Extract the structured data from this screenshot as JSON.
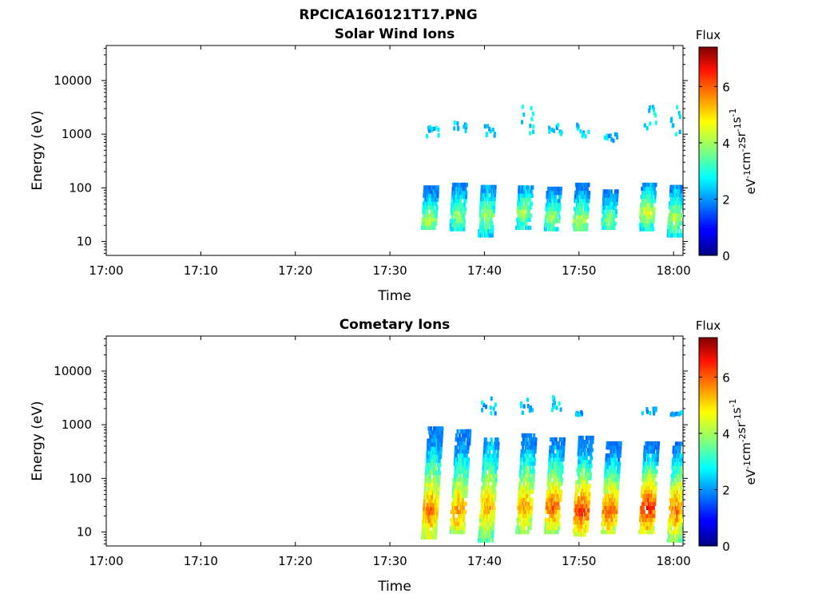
{
  "figure_title": "RPCICA160121T17.PNG",
  "colorbar": {
    "label": "Flux",
    "unit_parts": [
      "eV",
      "-1",
      "cm",
      "-2",
      "sr",
      "-1",
      "s",
      "-1"
    ],
    "ticks": [
      0,
      2,
      4,
      6
    ],
    "range": [
      0,
      7.4
    ],
    "colormap": "jet"
  },
  "chart_data": [
    {
      "type": "heatmap",
      "title": "Solar Wind Ions",
      "xlabel": "Time",
      "ylabel": "Energy (eV)",
      "x_ticks": [
        "17:00",
        "17:10",
        "17:20",
        "17:30",
        "17:40",
        "17:50",
        "18:00"
      ],
      "y_ticks": [
        "10",
        "100",
        "1000",
        "10000"
      ],
      "y_tick_values": [
        10,
        100,
        1000,
        10000
      ],
      "y_scale": "log",
      "xlim": [
        "17:00",
        "18:01"
      ],
      "ylim": [
        5.5,
        45000
      ],
      "bursts": [
        {
          "t": "17:34",
          "e_low": 18,
          "e_high": 110,
          "peak_energy": 25,
          "peak_flux": 4.3,
          "hi_e_low": 900,
          "hi_e_high": 1500,
          "hi_flux": 2.4
        },
        {
          "t": "17:37",
          "e_low": 17,
          "e_high": 120,
          "peak_energy": 30,
          "peak_flux": 4.0,
          "hi_e_low": 1000,
          "hi_e_high": 1800,
          "hi_flux": 2.3
        },
        {
          "t": "17:40",
          "e_low": 13,
          "e_high": 110,
          "peak_energy": 30,
          "peak_flux": 4.1,
          "hi_e_low": 900,
          "hi_e_high": 1600,
          "hi_flux": 2.3
        },
        {
          "t": "17:44",
          "e_low": 18,
          "e_high": 110,
          "peak_energy": 35,
          "peak_flux": 4.2,
          "hi_e_low": 1000,
          "hi_e_high": 3300,
          "hi_flux": 2.6
        },
        {
          "t": "17:47",
          "e_low": 17,
          "e_high": 110,
          "peak_energy": 28,
          "peak_flux": 4.0,
          "hi_e_low": 1000,
          "hi_e_high": 1500,
          "hi_flux": 2.4
        },
        {
          "t": "17:50",
          "e_low": 17,
          "e_high": 120,
          "peak_energy": 25,
          "peak_flux": 4.3,
          "hi_e_low": 900,
          "hi_e_high": 1500,
          "hi_flux": 2.5
        },
        {
          "t": "17:53",
          "e_low": 18,
          "e_high": 90,
          "peak_energy": 25,
          "peak_flux": 4.0,
          "hi_e_low": 700,
          "hi_e_high": 1200,
          "hi_flux": 2.3
        },
        {
          "t": "17:57",
          "e_low": 17,
          "e_high": 120,
          "peak_energy": 35,
          "peak_flux": 4.6,
          "hi_e_low": 900,
          "hi_e_high": 3300,
          "hi_flux": 2.6
        },
        {
          "t": "18:00",
          "e_low": 13,
          "e_high": 110,
          "peak_energy": 28,
          "peak_flux": 4.3,
          "hi_e_low": 900,
          "hi_e_high": 3300,
          "hi_flux": 2.6
        }
      ]
    },
    {
      "type": "heatmap",
      "title": "Cometary Ions",
      "xlabel": "Time",
      "ylabel": "Energy (eV)",
      "x_ticks": [
        "17:00",
        "17:10",
        "17:20",
        "17:30",
        "17:40",
        "17:50",
        "18:00"
      ],
      "y_ticks": [
        "10",
        "100",
        "1000",
        "10000"
      ],
      "y_tick_values": [
        10,
        100,
        1000,
        10000
      ],
      "y_scale": "log",
      "xlim": [
        "17:00",
        "18:01"
      ],
      "ylim": [
        5.5,
        45000
      ],
      "bursts": [
        {
          "t": "17:34",
          "e_low": 8,
          "e_high": 900,
          "peak_energy": 25,
          "peak_flux": 5.8,
          "hi_e_low": 0,
          "hi_e_high": 0,
          "hi_flux": 0
        },
        {
          "t": "17:37",
          "e_low": 10,
          "e_high": 800,
          "peak_energy": 25,
          "peak_flux": 5.6,
          "hi_e_low": 0,
          "hi_e_high": 0,
          "hi_flux": 0
        },
        {
          "t": "17:40",
          "e_low": 7,
          "e_high": 600,
          "peak_energy": 30,
          "peak_flux": 5.4,
          "hi_e_low": 1600,
          "hi_e_high": 3300,
          "hi_flux": 2.3
        },
        {
          "t": "17:44",
          "e_low": 10,
          "e_high": 700,
          "peak_energy": 30,
          "peak_flux": 5.5,
          "hi_e_low": 1600,
          "hi_e_high": 3300,
          "hi_flux": 2.3
        },
        {
          "t": "17:47",
          "e_low": 10,
          "e_high": 600,
          "peak_energy": 30,
          "peak_flux": 5.9,
          "hi_e_low": 1600,
          "hi_e_high": 3300,
          "hi_flux": 2.4
        },
        {
          "t": "17:50",
          "e_low": 9,
          "e_high": 600,
          "peak_energy": 25,
          "peak_flux": 6.3,
          "hi_e_low": 1500,
          "hi_e_high": 1700,
          "hi_flux": 2.2
        },
        {
          "t": "17:53",
          "e_low": 10,
          "e_high": 500,
          "peak_energy": 25,
          "peak_flux": 6.0,
          "hi_e_low": 0,
          "hi_e_high": 0,
          "hi_flux": 0
        },
        {
          "t": "17:57",
          "e_low": 10,
          "e_high": 500,
          "peak_energy": 28,
          "peak_flux": 6.5,
          "hi_e_low": 1600,
          "hi_e_high": 2000,
          "hi_flux": 2.2
        },
        {
          "t": "18:00",
          "e_low": 7,
          "e_high": 500,
          "peak_energy": 25,
          "peak_flux": 5.8,
          "hi_e_low": 1500,
          "hi_e_high": 1700,
          "hi_flux": 2.2
        }
      ]
    }
  ]
}
